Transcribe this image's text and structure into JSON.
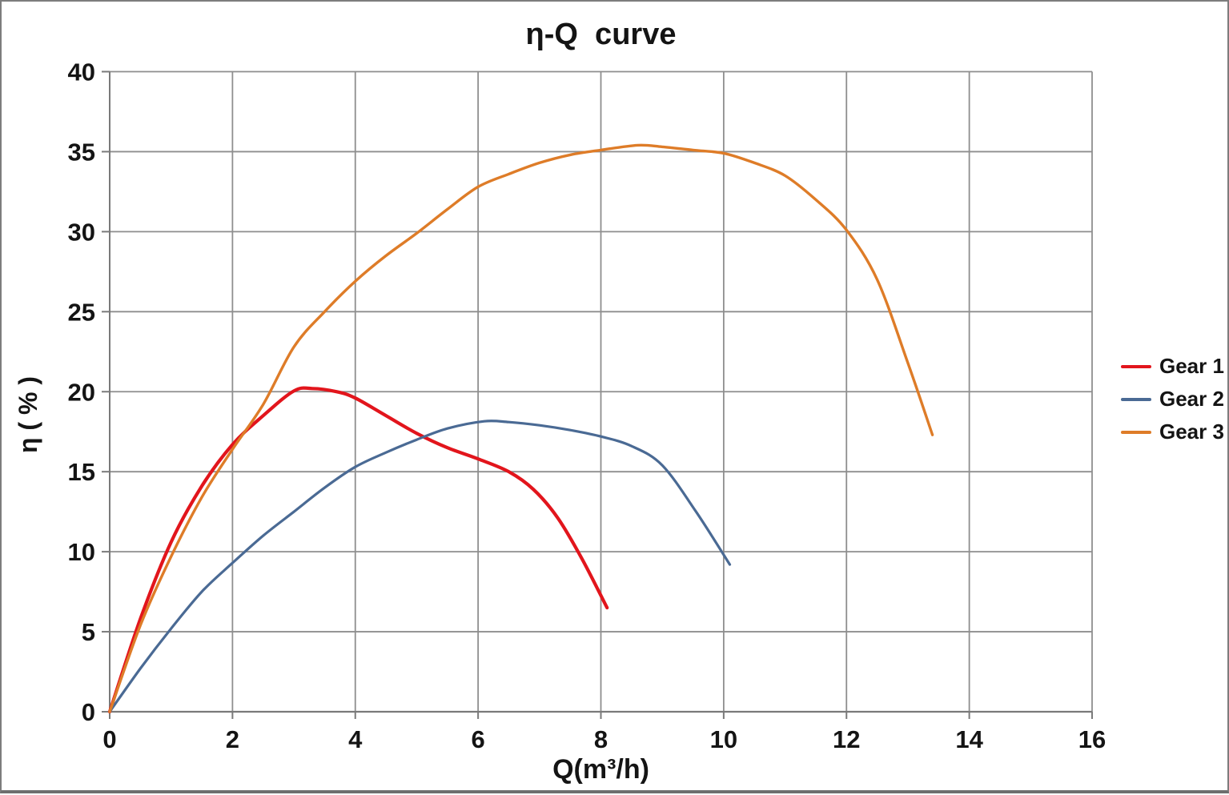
{
  "window": {
    "background": "#FFFFFF",
    "border_color": "#7D7D7D"
  },
  "chart_data": {
    "type": "line",
    "title": "η-Q  curve",
    "xlabel": "Q(m³/h)",
    "ylabel": "η ( % )",
    "xlim": [
      0,
      16
    ],
    "ylim": [
      0,
      40
    ],
    "xticks": [
      0,
      2,
      4,
      6,
      8,
      10,
      12,
      14,
      16
    ],
    "yticks": [
      0,
      5,
      10,
      15,
      20,
      25,
      30,
      35,
      40
    ],
    "grid": true,
    "grid_color": "#8E8E8E",
    "axis_color": "#7A7A7A",
    "legend_position": "right",
    "series": [
      {
        "name": "Gear 1",
        "color": "#E2151C",
        "x": [
          0,
          0.5,
          1,
          1.5,
          2,
          2.5,
          3,
          3.3,
          3.7,
          4,
          4.5,
          5,
          5.5,
          6,
          6.5,
          6.9,
          7.3,
          7.7,
          8.1
        ],
        "y": [
          0,
          5.8,
          10.6,
          14.1,
          16.7,
          18.5,
          20.05,
          20.2,
          20.0,
          19.6,
          18.5,
          17.4,
          16.5,
          15.8,
          15.0,
          13.9,
          12.1,
          9.5,
          6.5
        ]
      },
      {
        "name": "Gear 2",
        "color": "#4A6A94",
        "x": [
          0,
          0.5,
          1,
          1.5,
          2,
          2.5,
          3,
          3.5,
          4,
          4.5,
          5,
          5.5,
          6.1,
          6.5,
          7,
          7.5,
          8,
          8.5,
          9,
          9.55,
          10.1
        ],
        "y": [
          0,
          2.7,
          5.2,
          7.5,
          9.3,
          11.0,
          12.5,
          14.0,
          15.3,
          16.2,
          17.0,
          17.7,
          18.15,
          18.1,
          17.9,
          17.6,
          17.2,
          16.6,
          15.4,
          12.5,
          9.2
        ]
      },
      {
        "name": "Gear 3",
        "color": "#DE7C28",
        "x": [
          0,
          0.5,
          1,
          1.5,
          2,
          2.5,
          3,
          3.5,
          4,
          4.5,
          5,
          5.5,
          6,
          6.5,
          7,
          7.5,
          8,
          8.6,
          9,
          9.5,
          10,
          10.5,
          11,
          11.5,
          12,
          12.5,
          13,
          13.4
        ],
        "y": [
          0,
          5.4,
          9.7,
          13.4,
          16.4,
          19.2,
          22.8,
          25.0,
          26.9,
          28.5,
          29.9,
          31.4,
          32.8,
          33.6,
          34.3,
          34.8,
          35.1,
          35.4,
          35.3,
          35.1,
          34.9,
          34.3,
          33.5,
          32.0,
          30.1,
          27.0,
          21.8,
          17.3
        ]
      }
    ]
  }
}
